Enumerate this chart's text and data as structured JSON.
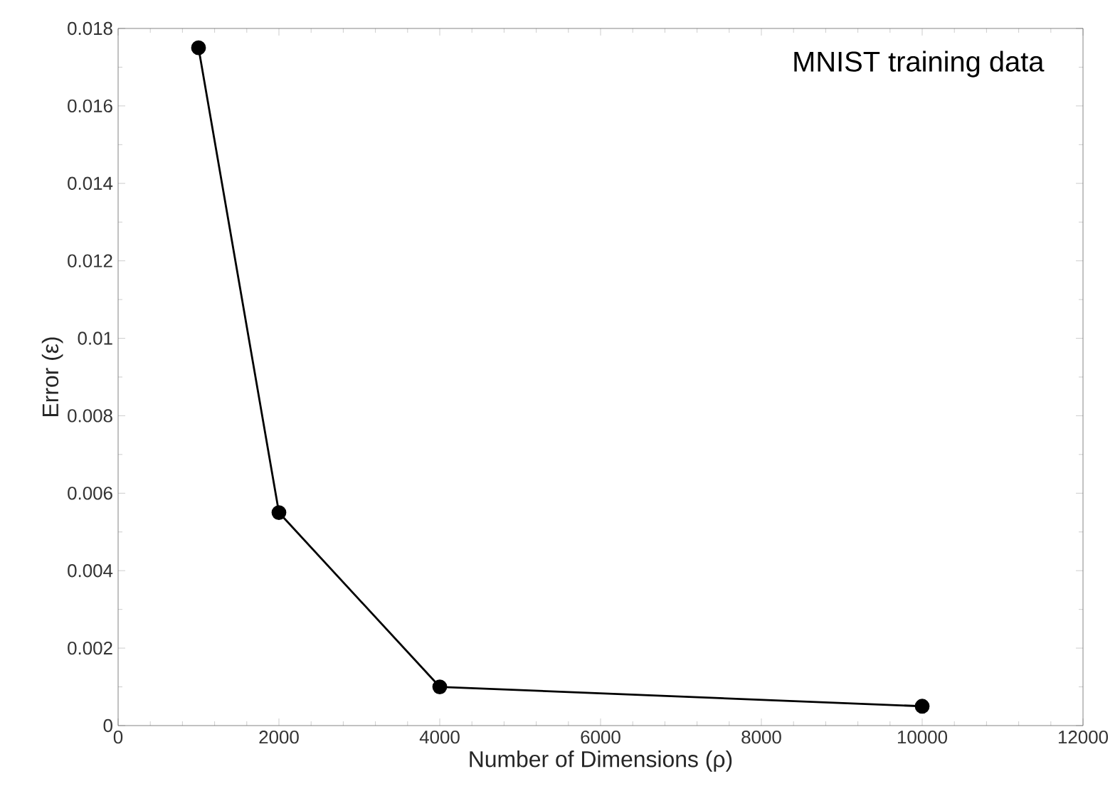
{
  "chart_data": {
    "type": "line",
    "xlabel": "Number of Dimensions (ρ)",
    "ylabel": "Error (ε)",
    "annotations": [
      "MNIST training data"
    ],
    "x": [
      1000,
      2000,
      4000,
      10000
    ],
    "series": [
      {
        "color": "#000000",
        "values": [
          0.0175,
          0.0055,
          0.001,
          0.0005
        ]
      }
    ],
    "xlim": [
      0,
      12000
    ],
    "xticks": [
      0,
      2000,
      4000,
      6000,
      8000,
      10000,
      12000
    ],
    "ylim": [
      0,
      0.018
    ],
    "yticks": [
      0,
      0.002,
      0.004,
      0.006,
      0.008,
      0.01,
      0.012,
      0.014,
      0.016,
      0.018
    ],
    "grid": false,
    "marker": "circle",
    "line_style": "solid"
  }
}
